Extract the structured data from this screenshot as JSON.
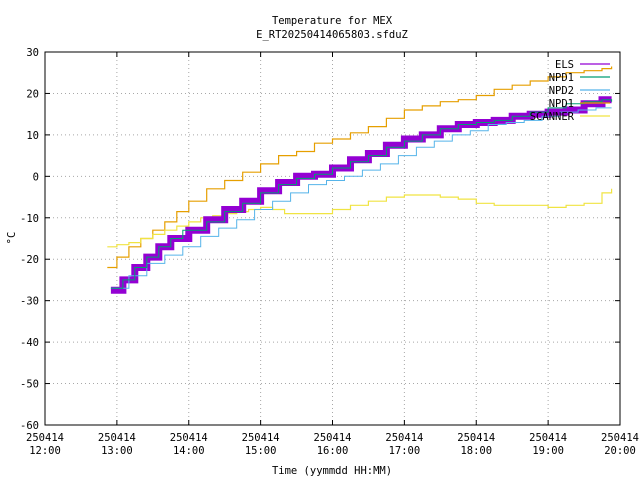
{
  "chart_data": {
    "type": "line",
    "title": "Temperature for MEX",
    "subtitle": "E_RT20250414065803.sfduZ",
    "xlabel": "Time (yymmdd HH:MM)",
    "ylabel": "°C",
    "ylim": [
      -60,
      30
    ],
    "yticks": [
      "30",
      "20",
      "10",
      "0",
      "-10",
      "-20",
      "-30",
      "-40",
      "-50",
      "-60"
    ],
    "xlim": [
      "12:00",
      "20:00"
    ],
    "xticks": [
      {
        "date": "250414",
        "time": "12:00"
      },
      {
        "date": "250414",
        "time": "13:00"
      },
      {
        "date": "250414",
        "time": "14:00"
      },
      {
        "date": "250414",
        "time": "15:00"
      },
      {
        "date": "250414",
        "time": "16:00"
      },
      {
        "date": "250414",
        "time": "17:00"
      },
      {
        "date": "250414",
        "time": "18:00"
      },
      {
        "date": "250414",
        "time": "19:00"
      },
      {
        "date": "250414",
        "time": "20:00"
      }
    ],
    "grid": true,
    "legend_position": "top-right",
    "series": [
      {
        "name": "ELS",
        "color": "#9400d3",
        "width": 7,
        "x": [
          "12:55",
          "13:05",
          "13:15",
          "13:25",
          "13:35",
          "13:45",
          "14:00",
          "14:15",
          "14:30",
          "14:45",
          "15:00",
          "15:15",
          "15:30",
          "15:45",
          "16:00",
          "16:15",
          "16:30",
          "16:45",
          "17:00",
          "17:15",
          "17:30",
          "17:45",
          "18:00",
          "18:15",
          "18:30",
          "18:45",
          "19:00",
          "19:15",
          "19:30",
          "19:45",
          "19:53"
        ],
        "y": [
          -27.5,
          -25,
          -22,
          -19.5,
          -17,
          -15,
          -13,
          -10.5,
          -8,
          -6,
          -3.5,
          -1.5,
          0,
          0.5,
          2,
          4,
          5.5,
          7.5,
          9,
          10,
          11.5,
          12.5,
          13,
          13.5,
          14.5,
          15,
          15.5,
          16,
          17.5,
          18.5,
          18.5
        ]
      },
      {
        "name": "NPD1",
        "color": "#009e73",
        "width": 1,
        "x": [
          "12:55",
          "13:05",
          "13:15",
          "13:25",
          "13:35",
          "13:45",
          "13:55",
          "14:00",
          "14:15",
          "14:30",
          "14:45",
          "15:00",
          "15:15",
          "15:30",
          "15:45",
          "16:00",
          "16:15",
          "16:30",
          "16:45",
          "17:00",
          "17:15",
          "17:30",
          "17:45",
          "18:00",
          "18:15",
          "18:30",
          "18:45",
          "19:00",
          "19:15",
          "19:30",
          "19:45",
          "19:53"
        ],
        "y": [
          -27,
          -25,
          -22,
          -19.5,
          -17,
          -15,
          -13,
          -13,
          -11,
          -8.5,
          -6.5,
          -4,
          -2,
          -0.5,
          0.5,
          2,
          3.5,
          5,
          7,
          8.5,
          10,
          11.5,
          12.5,
          13,
          13.5,
          14.5,
          15.5,
          16.5,
          17.5,
          18,
          18.5,
          18
        ]
      },
      {
        "name": "NPD2",
        "color": "#56b4e9",
        "width": 1,
        "x": [
          "12:55",
          "13:10",
          "13:25",
          "13:40",
          "13:55",
          "14:10",
          "14:25",
          "14:40",
          "14:55",
          "15:10",
          "15:25",
          "15:40",
          "15:55",
          "16:10",
          "16:25",
          "16:40",
          "16:55",
          "17:10",
          "17:25",
          "17:40",
          "17:55",
          "18:10",
          "18:25",
          "18:40",
          "18:55",
          "19:10",
          "19:25",
          "19:40",
          "19:53"
        ],
        "y": [
          -27,
          -24,
          -21,
          -19,
          -17,
          -14.5,
          -12.5,
          -10.5,
          -8,
          -6,
          -4,
          -2,
          -1,
          0,
          1.5,
          3,
          5,
          7,
          8.5,
          10,
          11,
          12.5,
          13,
          13.5,
          14.5,
          15.5,
          16,
          16.5,
          16.5
        ]
      },
      {
        "name": "NPD1",
        "color": "#e69f00",
        "width": 1.2,
        "x": [
          "12:52",
          "13:00",
          "13:10",
          "13:20",
          "13:30",
          "13:40",
          "13:50",
          "14:00",
          "14:15",
          "14:30",
          "14:45",
          "15:00",
          "15:15",
          "15:30",
          "15:45",
          "16:00",
          "16:15",
          "16:30",
          "16:45",
          "17:00",
          "17:15",
          "17:30",
          "17:45",
          "18:00",
          "18:15",
          "18:30",
          "18:45",
          "19:00",
          "19:15",
          "19:30",
          "19:45",
          "19:53"
        ],
        "y": [
          -22,
          -19.5,
          -17,
          -15,
          -13,
          -11,
          -8.5,
          -6,
          -3,
          -1,
          1,
          3,
          5,
          6,
          8,
          9,
          10.5,
          12,
          14,
          16,
          17,
          18,
          18.5,
          19.5,
          21,
          22,
          23,
          24,
          25,
          25.5,
          26,
          26.5
        ]
      },
      {
        "name": "SCANNER",
        "color": "#f0e442",
        "width": 1.2,
        "x": [
          "12:52",
          "13:00",
          "13:10",
          "13:20",
          "13:30",
          "13:40",
          "13:50",
          "14:00",
          "14:10",
          "14:20",
          "14:30",
          "14:40",
          "14:50",
          "15:00",
          "15:10",
          "15:20",
          "15:30",
          "15:40",
          "15:50",
          "16:00",
          "16:15",
          "16:30",
          "16:45",
          "17:00",
          "17:15",
          "17:30",
          "17:45",
          "18:00",
          "18:15",
          "18:30",
          "18:45",
          "19:00",
          "19:15",
          "19:30",
          "19:45",
          "19:53"
        ],
        "y": [
          -17,
          -16.5,
          -16,
          -15,
          -14,
          -13,
          -12,
          -11,
          -10,
          -9.5,
          -9,
          -8.5,
          -8,
          -7.5,
          -8,
          -9,
          -9,
          -9,
          -9,
          -8,
          -7,
          -6,
          -5,
          -4.5,
          -4.5,
          -5,
          -5.5,
          -6.5,
          -7,
          -7,
          -7,
          -7.5,
          -7,
          -6.5,
          -4,
          -3
        ]
      }
    ]
  }
}
